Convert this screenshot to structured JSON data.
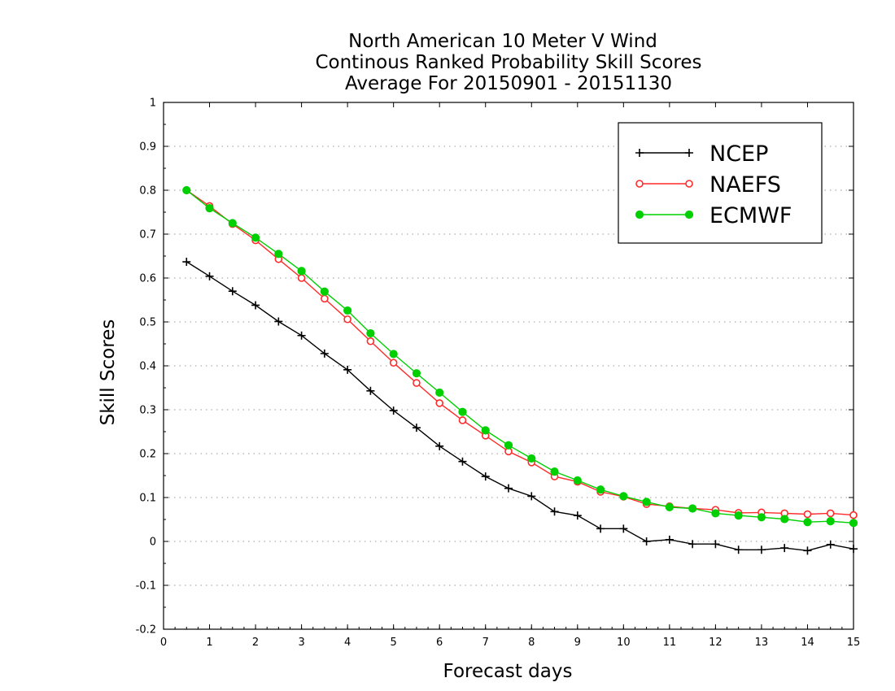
{
  "chart_data": {
    "type": "line",
    "title_lines": [
      "North American 10 Meter V Wind",
      "Continous Ranked Probability Skill Scores",
      "Average For 20150901 - 20151130"
    ],
    "xlabel": "Forecast days",
    "ylabel": "Skill Scores",
    "xlim": [
      0,
      15
    ],
    "ylim": [
      -0.2,
      1
    ],
    "xticks": [
      "0",
      "1",
      "2",
      "3",
      "4",
      "5",
      "6",
      "7",
      "8",
      "9",
      "10",
      "11",
      "12",
      "13",
      "14",
      "15"
    ],
    "yticks": [
      "-0.2",
      "-0.1",
      "0",
      "0.1",
      "0.2",
      "0.3",
      "0.4",
      "0.5",
      "0.6",
      "0.7",
      "0.8",
      "0.9",
      "1"
    ],
    "grid": "horizontal dotted",
    "legend_position": "top-right",
    "x": [
      0.5,
      1,
      1.5,
      2,
      2.5,
      3,
      3.5,
      4,
      4.5,
      5,
      5.5,
      6,
      6.5,
      7,
      7.5,
      8,
      8.5,
      9,
      9.5,
      10,
      10.5,
      11,
      11.5,
      12,
      12.5,
      13,
      13.5,
      14,
      14.5,
      15
    ],
    "series": [
      {
        "name": "NCEP",
        "color": "#000000",
        "marker": "plus",
        "values": [
          0.637,
          0.604,
          0.57,
          0.538,
          0.501,
          0.469,
          0.428,
          0.391,
          0.343,
          0.298,
          0.259,
          0.217,
          0.182,
          0.148,
          0.121,
          0.103,
          0.068,
          0.059,
          0.029,
          0.029,
          0.0,
          0.004,
          -0.006,
          -0.006,
          -0.019,
          -0.019,
          -0.015,
          -0.021,
          -0.007,
          -0.017
        ]
      },
      {
        "name": "NAEFS",
        "color": "#ff2a2a",
        "marker": "open-circle",
        "values": [
          0.8,
          0.764,
          0.723,
          0.686,
          0.643,
          0.6,
          0.553,
          0.506,
          0.456,
          0.407,
          0.361,
          0.315,
          0.276,
          0.241,
          0.205,
          0.18,
          0.148,
          0.136,
          0.113,
          0.102,
          0.085,
          0.08,
          0.075,
          0.072,
          0.065,
          0.066,
          0.064,
          0.062,
          0.064,
          0.06
        ]
      },
      {
        "name": "ECMWF",
        "color": "#00d000",
        "marker": "filled-circle",
        "values": [
          0.8,
          0.759,
          0.725,
          0.692,
          0.655,
          0.616,
          0.569,
          0.526,
          0.474,
          0.427,
          0.383,
          0.339,
          0.295,
          0.253,
          0.219,
          0.189,
          0.159,
          0.139,
          0.118,
          0.103,
          0.09,
          0.078,
          0.075,
          0.064,
          0.059,
          0.055,
          0.051,
          0.044,
          0.046,
          0.042
        ]
      }
    ]
  }
}
